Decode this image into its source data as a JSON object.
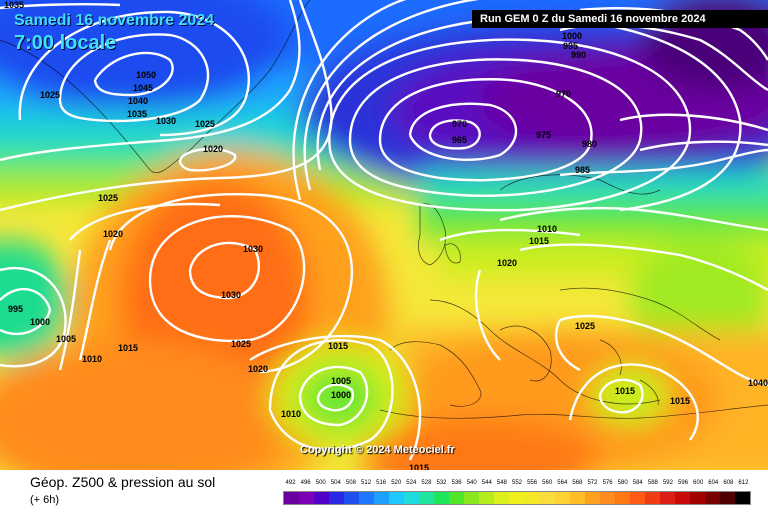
{
  "header": {
    "run_label": "Run GEM 0 Z du Samedi 16 novembre 2024",
    "date": "Samedi 16 novembre 2024",
    "time": "7:00 locale"
  },
  "copyright": "Copyright © 2024 Meteociel.fr",
  "footer": {
    "title": "Géop. Z500 & pression au sol",
    "subtitle": "(+ 6h)"
  },
  "legend": {
    "labels": [
      "492",
      "496",
      "500",
      "504",
      "508",
      "512",
      "516",
      "520",
      "524",
      "528",
      "532",
      "536",
      "540",
      "544",
      "548",
      "552",
      "556",
      "560",
      "564",
      "568",
      "572",
      "576",
      "580",
      "584",
      "588",
      "592",
      "596",
      "600",
      "604",
      "608",
      "612"
    ],
    "colors": [
      "#6a00a0",
      "#7d00b4",
      "#5000c8",
      "#2a28e6",
      "#1e50f0",
      "#1e78ff",
      "#1ea0ff",
      "#1ec8ff",
      "#1edcdc",
      "#1ee6a0",
      "#1ee65a",
      "#50e628",
      "#8ce61e",
      "#b4ec1e",
      "#dcf01e",
      "#f0f01e",
      "#f5e628",
      "#fadc3c",
      "#ffd232",
      "#ffbe28",
      "#ffa01e",
      "#ff8c1e",
      "#ff7814",
      "#ff5a14",
      "#f03c14",
      "#dc1e14",
      "#c80a0a",
      "#a00000",
      "#780000",
      "#500000",
      "#000000"
    ]
  },
  "pressure_labels": [
    "1035",
    "1050",
    "1045",
    "1040",
    "1035",
    "1030",
    "1025",
    "1025",
    "1020",
    "1025",
    "1020",
    "1030",
    "1030",
    "995",
    "1000",
    "1005",
    "1010",
    "1015",
    "1025",
    "1020",
    "1015",
    "1005",
    "1000",
    "1010",
    "1015",
    "1000",
    "995",
    "990",
    "970",
    "970",
    "965",
    "975",
    "980",
    "985",
    "1010",
    "1015",
    "1020",
    "1025",
    "1015",
    "1015",
    "1040"
  ]
}
